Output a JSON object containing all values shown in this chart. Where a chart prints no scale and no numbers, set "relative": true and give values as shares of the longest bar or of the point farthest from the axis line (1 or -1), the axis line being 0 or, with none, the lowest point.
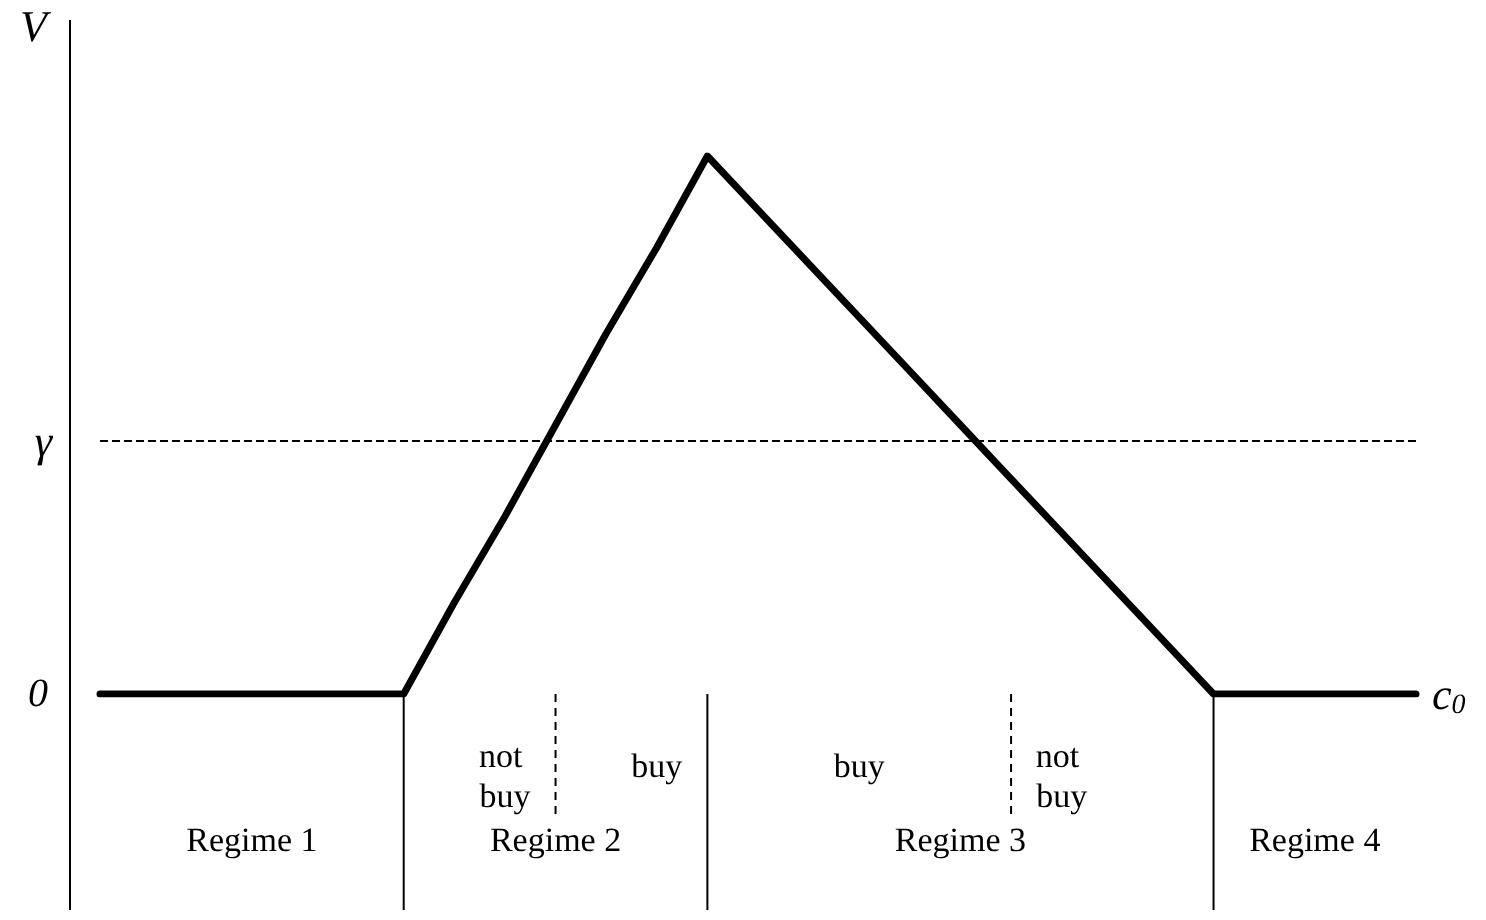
{
  "chart_data": {
    "type": "line",
    "relative": true,
    "ylabel": "V",
    "xlabel": "c$_{0}$",
    "color": "#000000",
    "categories": [
      null,
      null,
      null,
      null,
      null,
      null,
      null,
      null,
      null,
      null,
      null,
      null,
      null,
      null,
      null,
      null,
      null,
      null,
      null,
      null,
      null,
      null,
      null,
      null,
      null,
      null,
      null
    ],
    "values": [
      0,
      0,
      0,
      0,
      0,
      0,
      0,
      0.17,
      0.33,
      0.5,
      0.67,
      0.83,
      1,
      0.9,
      0.8,
      0.7,
      0.6,
      0.5,
      0.4,
      0.3,
      0.2,
      0.1,
      0,
      0,
      0,
      0,
      0
    ],
    "ref_lines": [
      {
        "axis": "y",
        "value": 0.47,
        "label": "γ",
        "line_style": "dashed"
      }
    ],
    "annotations": [
      "0",
      "not buy",
      "buy",
      "buy",
      "not buy",
      "Regime 1",
      "Regime 2",
      "Regime 3",
      "Regime 4"
    ],
    "marker": "none",
    "line_style": "solid"
  }
}
